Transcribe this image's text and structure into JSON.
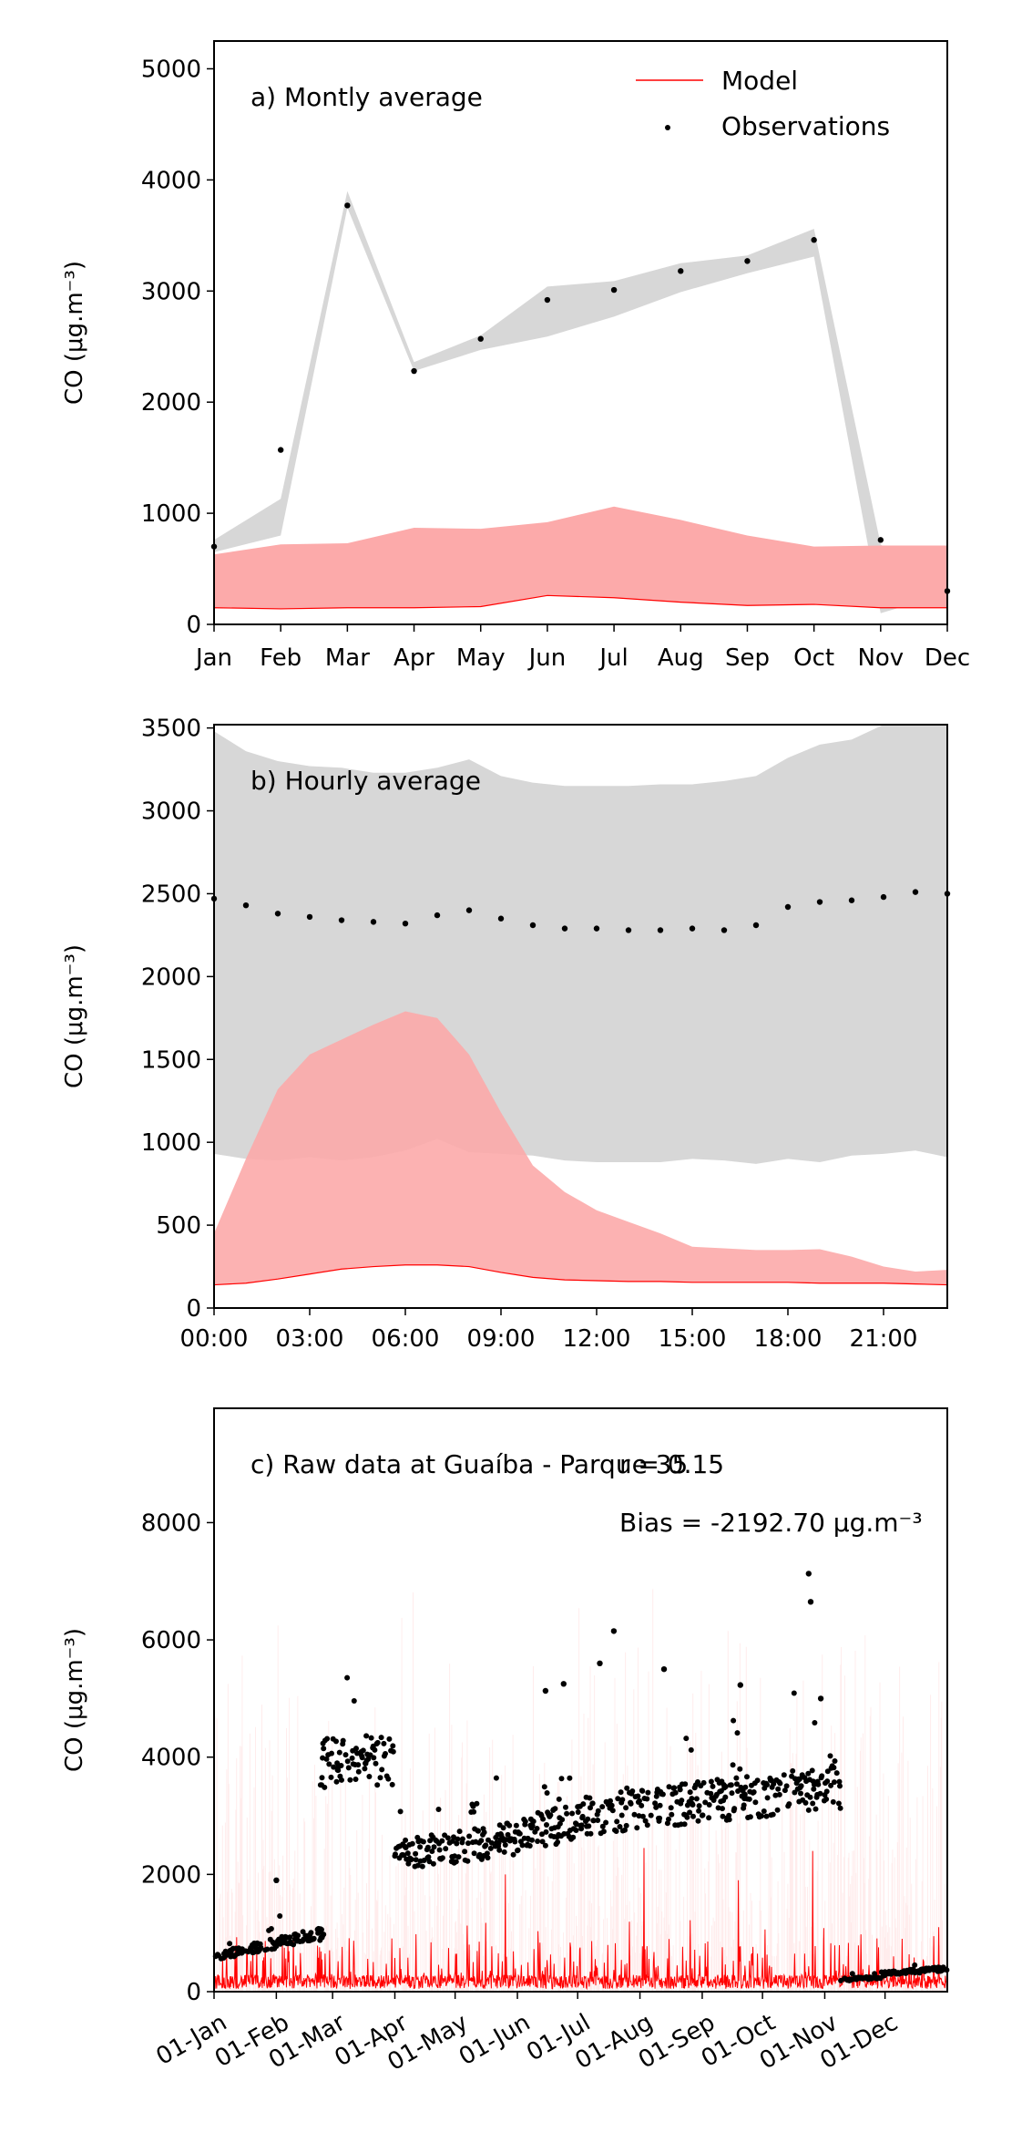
{
  "colors": {
    "model": "#ff0000",
    "model_band": "#fcaaaa",
    "obs": "#000000",
    "obs_band": "#d7d7d7"
  },
  "chart_data": [
    {
      "type": "line",
      "panel_label": "a) Montly average",
      "ylabel": "CO (μg.m⁻³)",
      "x": [
        "Jan",
        "Feb",
        "Mar",
        "Apr",
        "May",
        "Jun",
        "Jul",
        "Aug",
        "Sep",
        "Oct",
        "Nov",
        "Dec"
      ],
      "ylim": [
        0,
        5250
      ],
      "yticks": [
        0,
        1000,
        2000,
        3000,
        4000,
        5000
      ],
      "legend": {
        "placement": "top-right",
        "entries": [
          {
            "label": "Model",
            "kind": "line"
          },
          {
            "label": "Observations",
            "kind": "marker"
          }
        ]
      },
      "series": [
        {
          "name": "Model",
          "kind": "line",
          "values": [
            150,
            140,
            150,
            150,
            160,
            260,
            240,
            200,
            170,
            180,
            150,
            150
          ]
        },
        {
          "name": "Model",
          "kind": "band",
          "lower": [
            150,
            140,
            150,
            150,
            160,
            260,
            240,
            200,
            170,
            180,
            150,
            150
          ],
          "upper": [
            630,
            720,
            730,
            870,
            860,
            920,
            1060,
            940,
            800,
            700,
            710,
            710
          ]
        },
        {
          "name": "Observations",
          "kind": "scatter",
          "values": [
            700,
            1570,
            3770,
            2280,
            2570,
            2920,
            3010,
            3180,
            3270,
            3460,
            760,
            300
          ]
        },
        {
          "name": "Observations",
          "kind": "band",
          "lower": [
            650,
            800,
            3750,
            2280,
            2470,
            2590,
            2770,
            2990,
            3160,
            3310,
            100,
            280
          ],
          "upper": [
            760,
            1130,
            3900,
            2360,
            2600,
            3040,
            3090,
            3250,
            3320,
            3560,
            720,
            300
          ]
        }
      ]
    },
    {
      "type": "line",
      "panel_label": "b) Hourly average",
      "ylabel": "CO (μg.m⁻³)",
      "x": [
        0,
        1,
        2,
        3,
        4,
        5,
        6,
        7,
        8,
        9,
        10,
        11,
        12,
        13,
        14,
        15,
        16,
        17,
        18,
        19,
        20,
        21,
        22,
        23
      ],
      "xtick_values": [
        0,
        3,
        6,
        9,
        12,
        15,
        18,
        21
      ],
      "xtick_labels": [
        "00:00",
        "03:00",
        "06:00",
        "09:00",
        "12:00",
        "15:00",
        "18:00",
        "21:00"
      ],
      "ylim": [
        0,
        3520
      ],
      "yticks": [
        0,
        500,
        1000,
        1500,
        2000,
        2500,
        3000,
        3500
      ],
      "series": [
        {
          "name": "Model",
          "kind": "line",
          "values": [
            140,
            150,
            175,
            205,
            235,
            250,
            260,
            260,
            250,
            215,
            185,
            170,
            165,
            160,
            160,
            155,
            155,
            155,
            155,
            150,
            150,
            150,
            145,
            140
          ]
        },
        {
          "name": "Model",
          "kind": "band",
          "lower": [
            140,
            150,
            175,
            205,
            235,
            250,
            260,
            260,
            250,
            215,
            185,
            170,
            165,
            160,
            160,
            155,
            155,
            155,
            155,
            150,
            150,
            150,
            145,
            140
          ],
          "upper": [
            450,
            900,
            1320,
            1530,
            1620,
            1710,
            1790,
            1750,
            1530,
            1180,
            860,
            700,
            590,
            520,
            450,
            370,
            360,
            350,
            350,
            355,
            310,
            250,
            220,
            230
          ]
        },
        {
          "name": "Observations",
          "kind": "scatter",
          "values": [
            2470,
            2430,
            2380,
            2360,
            2340,
            2330,
            2320,
            2370,
            2400,
            2350,
            2310,
            2290,
            2290,
            2280,
            2280,
            2290,
            2280,
            2310,
            2420,
            2450,
            2460,
            2480,
            2510,
            2500
          ]
        },
        {
          "name": "Observations",
          "kind": "band",
          "lower": [
            930,
            900,
            890,
            910,
            890,
            910,
            950,
            1020,
            940,
            930,
            920,
            890,
            880,
            880,
            880,
            900,
            890,
            870,
            900,
            880,
            920,
            930,
            950,
            910
          ],
          "upper": [
            3480,
            3360,
            3300,
            3270,
            3260,
            3230,
            3230,
            3260,
            3310,
            3210,
            3170,
            3150,
            3150,
            3150,
            3160,
            3160,
            3180,
            3210,
            3320,
            3400,
            3430,
            3520,
            3520,
            3520
          ]
        }
      ]
    },
    {
      "type": "scatter",
      "panel_label": "c) Raw data at Guaíba - Parque 35",
      "annotation_r": "r = 0.15",
      "annotation_bias": "Bias = -2192.70 μg.m⁻³",
      "ylabel": "CO (μg.m⁻³)",
      "xtick_labels": [
        "01-Jan",
        "01-Feb",
        "01-Mar",
        "01-Apr",
        "01-May",
        "01-Jun",
        "01-Jul",
        "01-Aug",
        "01-Sep",
        "01-Oct",
        "01-Nov",
        "01-Dec"
      ],
      "xtick_days": [
        0,
        31,
        59,
        90,
        120,
        151,
        181,
        212,
        243,
        273,
        304,
        334
      ],
      "xlim_days": [
        0,
        365
      ],
      "ylim": [
        0,
        9950
      ],
      "yticks": [
        0,
        2000,
        4000,
        6000,
        8000
      ],
      "observation_segments": [
        {
          "start_day": 0,
          "end_day": 55,
          "level_start": 600,
          "level_end": 1000
        },
        {
          "start_day": 53,
          "end_day": 90,
          "level_start": 3900,
          "level_end": 3950
        },
        {
          "start_day": 90,
          "end_day": 151,
          "level_start": 2320,
          "level_end": 2620
        },
        {
          "start_day": 151,
          "end_day": 184,
          "level_start": 2700,
          "level_end": 2900
        },
        {
          "start_day": 184,
          "end_day": 312,
          "level_start": 3000,
          "level_end": 3500
        },
        {
          "start_day": 312,
          "end_day": 332,
          "level_start": 200,
          "level_end": 250
        },
        {
          "start_day": 332,
          "end_day": 365,
          "level_start": 300,
          "level_end": 400
        }
      ],
      "observation_peaks": [
        {
          "day": 31,
          "value": 1900
        },
        {
          "day": 165,
          "value": 5130
        },
        {
          "day": 174,
          "value": 5250
        },
        {
          "day": 192,
          "value": 5600
        },
        {
          "day": 199,
          "value": 6150
        },
        {
          "day": 224,
          "value": 5500
        },
        {
          "day": 262,
          "value": 5230
        },
        {
          "day": 296,
          "value": 7130
        },
        {
          "day": 297,
          "value": 6650
        },
        {
          "day": 302,
          "value": 5000
        }
      ],
      "model_series": {
        "name": "Model",
        "base_min": 50,
        "base_max": 450,
        "spikes": [
          {
            "day": 145,
            "value": 2000
          },
          {
            "day": 214,
            "value": 2450
          },
          {
            "day": 261,
            "value": 1900
          },
          {
            "day": 298,
            "value": 2400
          }
        ]
      }
    }
  ]
}
